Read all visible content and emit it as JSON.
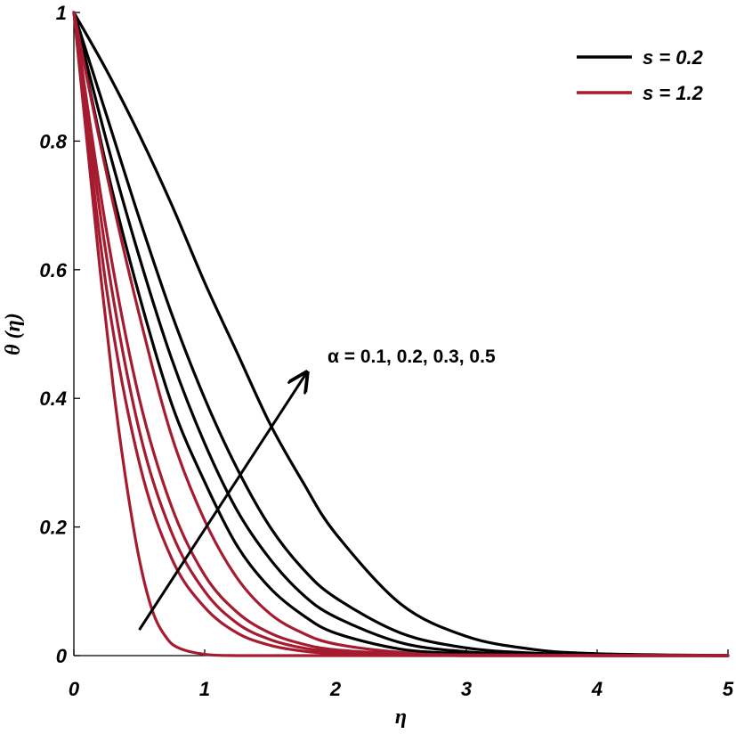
{
  "chart_data": {
    "type": "line",
    "xlabel": "η",
    "ylabel": "θ (η)",
    "xlim": [
      0,
      5
    ],
    "ylim": [
      0,
      1
    ],
    "x_ticks": [
      0,
      1,
      2,
      3,
      4,
      5
    ],
    "y_ticks": [
      0,
      0.2,
      0.4,
      0.6,
      0.8,
      1
    ],
    "x_tick_labels": [
      "0",
      "1",
      "2",
      "3",
      "4",
      "5"
    ],
    "y_tick_labels": [
      "0",
      "0.2",
      "0.4",
      "0.6",
      "0.8",
      "1"
    ],
    "grid": false,
    "legend_position": "top-right",
    "legend": [
      {
        "label": "s = 0.2",
        "color": "#000000"
      },
      {
        "label": "s = 1.2",
        "color": "#a51c30"
      }
    ],
    "annotation": {
      "text": "α = 0.1, 0.2, 0.3, 0.5",
      "arrow_from": [
        0.5,
        0.04
      ],
      "arrow_to": [
        1.78,
        0.44
      ]
    },
    "series": [
      {
        "group": "s = 0.2",
        "color": "#000000",
        "x": [
          0,
          0.25,
          0.5,
          0.75,
          1.0,
          1.25,
          1.5,
          1.75,
          2.0,
          2.5,
          3.0,
          3.5,
          4.0,
          5.0
        ],
        "y": [
          1,
          0.76,
          0.56,
          0.39,
          0.27,
          0.17,
          0.105,
          0.063,
          0.035,
          0.01,
          0.003,
          0.001,
          0,
          0
        ]
      },
      {
        "group": "s = 0.2",
        "color": "#000000",
        "x": [
          0,
          0.25,
          0.5,
          0.75,
          1.0,
          1.25,
          1.5,
          1.75,
          2.0,
          2.5,
          3.0,
          3.5,
          4.0,
          5.0
        ],
        "y": [
          1,
          0.8,
          0.62,
          0.46,
          0.33,
          0.225,
          0.15,
          0.095,
          0.06,
          0.02,
          0.006,
          0.002,
          0,
          0
        ]
      },
      {
        "group": "s = 0.2",
        "color": "#000000",
        "x": [
          0,
          0.25,
          0.5,
          0.75,
          1.0,
          1.25,
          1.5,
          1.75,
          2.0,
          2.5,
          3.0,
          3.5,
          4.0,
          5.0
        ],
        "y": [
          1,
          0.84,
          0.68,
          0.53,
          0.4,
          0.29,
          0.2,
          0.135,
          0.09,
          0.035,
          0.012,
          0.004,
          0.001,
          0
        ]
      },
      {
        "group": "s = 0.2",
        "color": "#000000",
        "x": [
          0,
          0.25,
          0.5,
          0.75,
          1.0,
          1.25,
          1.5,
          1.75,
          2.0,
          2.5,
          3.0,
          3.5,
          4.0,
          5.0
        ],
        "y": [
          1,
          0.91,
          0.81,
          0.7,
          0.58,
          0.47,
          0.36,
          0.27,
          0.19,
          0.08,
          0.03,
          0.01,
          0.003,
          0
        ]
      },
      {
        "group": "s = 1.2",
        "color": "#a51c30",
        "x": [
          0,
          0.1,
          0.2,
          0.3,
          0.4,
          0.5,
          0.6,
          0.7,
          0.8,
          1.0,
          1.25,
          1.5,
          2.0,
          3.0,
          5.0
        ],
        "y": [
          1,
          0.8,
          0.6,
          0.42,
          0.27,
          0.15,
          0.07,
          0.03,
          0.012,
          0.002,
          0,
          0,
          0,
          0,
          0
        ]
      },
      {
        "group": "s = 1.2",
        "color": "#a51c30",
        "x": [
          0,
          0.25,
          0.5,
          0.75,
          1.0,
          1.25,
          1.5,
          1.75,
          2.0,
          2.5,
          3.0,
          5.0
        ],
        "y": [
          1,
          0.57,
          0.3,
          0.15,
          0.075,
          0.035,
          0.016,
          0.007,
          0.003,
          0.001,
          0,
          0
        ]
      },
      {
        "group": "s = 1.2",
        "color": "#a51c30",
        "x": [
          0,
          0.25,
          0.5,
          0.75,
          1.0,
          1.25,
          1.5,
          1.75,
          2.0,
          2.5,
          3.0,
          5.0
        ],
        "y": [
          1,
          0.62,
          0.35,
          0.19,
          0.1,
          0.05,
          0.025,
          0.012,
          0.006,
          0.002,
          0,
          0
        ]
      },
      {
        "group": "s = 1.2",
        "color": "#a51c30",
        "x": [
          0,
          0.25,
          0.5,
          0.75,
          1.0,
          1.25,
          1.5,
          1.75,
          2.0,
          2.5,
          3.0,
          5.0
        ],
        "y": [
          1,
          0.66,
          0.4,
          0.23,
          0.125,
          0.067,
          0.035,
          0.018,
          0.009,
          0.003,
          0.001,
          0
        ]
      },
      {
        "group": "s = 1.2",
        "color": "#a51c30",
        "x": [
          0,
          0.25,
          0.5,
          0.75,
          1.0,
          1.25,
          1.5,
          1.75,
          2.0,
          2.5,
          3.0,
          5.0
        ],
        "y": [
          1,
          0.75,
          0.53,
          0.34,
          0.21,
          0.12,
          0.065,
          0.035,
          0.018,
          0.005,
          0.001,
          0
        ]
      }
    ]
  }
}
